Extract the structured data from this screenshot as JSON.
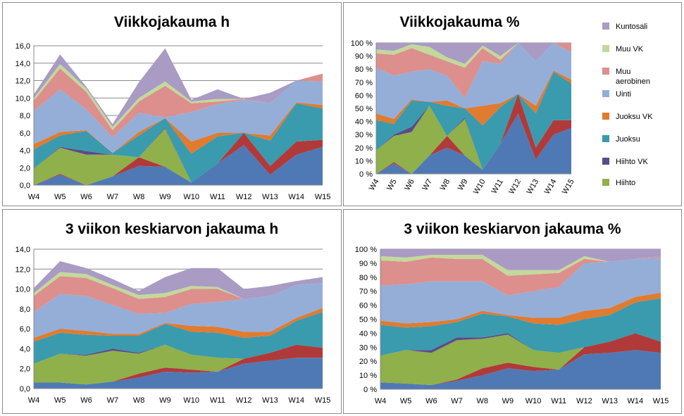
{
  "series_colors": {
    "Hiihto": "#8fb04a",
    "Hiihto VK": "#5b4a8b",
    "Juoksu": "#3a9aae",
    "Juoksu VK": "#e07b30",
    "Uinti": "#95aed8",
    "Muu aerobinen": "#dc8f8d",
    "Muu VK": "#c3d99a",
    "Kuntosali": "#a99bc4",
    "Hiihto-base": "#4f79b5",
    "Hiihto-red": "#b03a3a"
  },
  "chart_data": [
    {
      "id": "weekly_h",
      "type": "area",
      "stacked": true,
      "title": "Viikkojakauma h",
      "categories": [
        "W4",
        "W5",
        "W6",
        "W7",
        "W8",
        "W9",
        "W10",
        "W11",
        "W12",
        "W13",
        "W14",
        "W15"
      ],
      "ylim": [
        0,
        16
      ],
      "yticks": [
        "0,0",
        "2,0",
        "4,0",
        "6,0",
        "8,0",
        "10,0",
        "12,0",
        "14,0",
        "16,0"
      ],
      "grid": true,
      "series": [
        {
          "values": [
            0.0,
            1.2,
            0.0,
            1.0,
            2.2,
            2.1,
            0.3,
            2.5,
            4.6,
            1.2,
            3.5,
            4.4
          ],
          "color": "#4f79b5"
        },
        {
          "values": [
            0.0,
            0.1,
            0.0,
            0.0,
            1.0,
            0.0,
            0.0,
            0.0,
            1.4,
            1.0,
            1.5,
            0.8
          ],
          "color": "#b03a3a"
        },
        {
          "name": "Hiihto",
          "values": [
            1.9,
            3.0,
            3.5,
            2.5,
            0.0,
            4.4,
            0.0,
            0.0,
            0.0,
            0.0,
            0.0,
            0.0
          ],
          "color": "#8fb04a"
        },
        {
          "name": "Hiihto VK",
          "values": [
            0.0,
            0.1,
            0.4,
            0.0,
            0.0,
            0.1,
            0.0,
            0.0,
            0.0,
            0.0,
            0.0,
            0.0
          ],
          "color": "#5b4a8b"
        },
        {
          "name": "Juoksu",
          "values": [
            2.2,
            1.3,
            2.3,
            0.2,
            2.5,
            1.1,
            3.3,
            3.1,
            0.0,
            2.9,
            4.4,
            3.6
          ],
          "color": "#3a9aae"
        },
        {
          "name": "Juoksu VK",
          "values": [
            0.6,
            0.4,
            0.1,
            0.0,
            0.4,
            0.0,
            1.4,
            0.4,
            0.0,
            0.6,
            0.1,
            0.4
          ],
          "color": "#e07b30"
        },
        {
          "name": "Uinti",
          "values": [
            3.8,
            4.9,
            2.4,
            1.8,
            2.2,
            0.1,
            3.4,
            3.3,
            3.8,
            3.7,
            2.5,
            2.7
          ],
          "color": "#95aed8"
        },
        {
          "name": "Muu aerobinen",
          "values": [
            1.2,
            2.4,
            2.0,
            0.8,
            1.3,
            3.6,
            1.0,
            0.3,
            0.1,
            0.0,
            0.0,
            0.9
          ],
          "color": "#dc8f8d"
        },
        {
          "name": "Muu VK",
          "values": [
            0.3,
            0.5,
            0.4,
            0.4,
            0.4,
            0.5,
            0.2,
            0.3,
            0.0,
            0.0,
            0.0,
            0.0
          ],
          "color": "#c3d99a"
        },
        {
          "name": "Kuntosali",
          "values": [
            0.4,
            1.1,
            0.2,
            0.3,
            1.8,
            3.8,
            0.2,
            1.1,
            0.0,
            1.2,
            0.0,
            0.0
          ],
          "color": "#a99bc4"
        }
      ]
    },
    {
      "id": "weekly_pct",
      "type": "area",
      "stacked": true,
      "title": "Viikkojakauma %",
      "categories": [
        "W4",
        "W5",
        "W6",
        "W7",
        "W8",
        "W9",
        "W10",
        "W11",
        "W12",
        "W13",
        "W14",
        "W15"
      ],
      "ylim": [
        0,
        100
      ],
      "yticks": [
        "0 %",
        "10 %",
        "20 %",
        "30 %",
        "40 %",
        "50 %",
        "60 %",
        "70 %",
        "80 %",
        "90 %",
        "100 %"
      ],
      "grid": true,
      "rotated_xlabels": true,
      "series": [
        {
          "values": [
            0,
            8,
            0,
            14,
            20,
            14,
            3,
            23,
            46,
            11,
            30,
            35
          ],
          "color": "#4f79b5"
        },
        {
          "values": [
            0,
            1,
            0,
            0,
            9,
            0,
            0,
            0,
            15,
            9,
            11,
            6
          ],
          "color": "#b03a3a"
        },
        {
          "name": "Hiihto",
          "values": [
            18,
            20,
            32,
            38,
            0,
            28,
            0,
            0,
            0,
            0,
            0,
            0
          ],
          "color": "#8fb04a"
        },
        {
          "name": "Hiihto VK",
          "values": [
            0,
            1,
            4,
            0,
            0,
            1,
            0,
            0,
            0,
            0,
            0,
            0
          ],
          "color": "#5b4a8b"
        },
        {
          "name": "Juoksu",
          "values": [
            23,
            8,
            20,
            3,
            23,
            7,
            34,
            28,
            0,
            26,
            37,
            28
          ],
          "color": "#3a9aae"
        },
        {
          "name": "Juoksu VK",
          "values": [
            5,
            4,
            1,
            0,
            4,
            0,
            15,
            3,
            0,
            6,
            1,
            3
          ],
          "color": "#e07b30"
        },
        {
          "name": "Uinti",
          "values": [
            35,
            33,
            21,
            25,
            19,
            8,
            34,
            30,
            39,
            34,
            21,
            21
          ],
          "color": "#95aed8"
        },
        {
          "name": "Muu aerobinen",
          "values": [
            11,
            16,
            18,
            11,
            11,
            23,
            10,
            3,
            0,
            0,
            0,
            7
          ],
          "color": "#dc8f8d"
        },
        {
          "name": "Muu VK",
          "values": [
            3,
            3,
            3,
            6,
            3,
            3,
            2,
            3,
            0,
            0,
            0,
            0
          ],
          "color": "#c3d99a"
        },
        {
          "name": "Kuntosali",
          "values": [
            5,
            6,
            1,
            3,
            11,
            16,
            2,
            10,
            0,
            14,
            0,
            0
          ],
          "color": "#a99bc4"
        }
      ]
    },
    {
      "id": "avg3_h",
      "type": "area",
      "stacked": true,
      "title": "3 viikon keskiarvon jakauma h",
      "categories": [
        "W4",
        "W5",
        "W6",
        "W7",
        "W8",
        "W9",
        "W10",
        "W11",
        "W12",
        "W13",
        "W14",
        "W15"
      ],
      "ylim": [
        0,
        14
      ],
      "yticks": [
        "0,0",
        "2,0",
        "4,0",
        "6,0",
        "8,0",
        "10,0",
        "12,0",
        "14,0"
      ],
      "grid": true,
      "series": [
        {
          "values": [
            0.6,
            0.6,
            0.4,
            0.7,
            1.1,
            1.7,
            1.6,
            1.7,
            2.5,
            2.8,
            3.1,
            3.1
          ],
          "color": "#4f79b5"
        },
        {
          "values": [
            0.0,
            0.0,
            0.0,
            0.0,
            0.4,
            0.4,
            0.3,
            0.0,
            0.5,
            0.8,
            1.3,
            1.0
          ],
          "color": "#b03a3a"
        },
        {
          "name": "Hiihto",
          "values": [
            1.9,
            2.9,
            2.9,
            3.1,
            2.0,
            2.3,
            1.5,
            1.4,
            0.0,
            0.0,
            0.0,
            0.0
          ],
          "color": "#8fb04a"
        },
        {
          "name": "Hiihto VK",
          "values": [
            0.0,
            0.0,
            0.1,
            0.2,
            0.1,
            0.0,
            0.0,
            0.0,
            0.0,
            0.0,
            0.0,
            0.0
          ],
          "color": "#5b4a8b"
        },
        {
          "name": "Juoksu",
          "values": [
            2.2,
            2.1,
            2.0,
            1.3,
            1.7,
            2.1,
            2.3,
            2.5,
            2.1,
            1.7,
            2.4,
            3.6
          ],
          "color": "#3a9aae"
        },
        {
          "name": "Juoksu VK",
          "values": [
            0.4,
            0.4,
            0.4,
            0.2,
            0.2,
            0.1,
            0.6,
            0.6,
            0.6,
            0.4,
            0.3,
            0.4
          ],
          "color": "#e07b30"
        },
        {
          "name": "Uinti",
          "values": [
            2.6,
            3.5,
            3.5,
            2.9,
            2.0,
            1.0,
            2.2,
            2.5,
            3.3,
            3.6,
            3.3,
            2.5
          ],
          "color": "#95aed8"
        },
        {
          "name": "Muu aerobinen",
          "values": [
            1.6,
            1.8,
            1.8,
            1.7,
            1.5,
            1.6,
            1.5,
            1.3,
            0.0,
            0.0,
            0.0,
            0.0
          ],
          "color": "#dc8f8d"
        },
        {
          "name": "Muu VK",
          "values": [
            0.3,
            0.4,
            0.4,
            0.3,
            0.4,
            0.4,
            0.3,
            0.2,
            0.0,
            0.0,
            0.0,
            0.0
          ],
          "color": "#c3d99a"
        },
        {
          "name": "Kuntosali",
          "values": [
            0.5,
            1.1,
            0.6,
            0.6,
            0.4,
            1.6,
            1.8,
            1.9,
            1.0,
            1.0,
            0.4,
            0.6
          ],
          "color": "#a99bc4"
        }
      ]
    },
    {
      "id": "avg3_pct",
      "type": "area",
      "stacked": true,
      "title": "3 viikon keskiarvon jakauma %",
      "categories": [
        "W4",
        "W5",
        "W6",
        "W7",
        "W8",
        "W9",
        "W10",
        "W11",
        "W12",
        "W13",
        "W14",
        "W15"
      ],
      "ylim": [
        0,
        100
      ],
      "yticks": [
        "0 %",
        "10 %",
        "20 %",
        "30 %",
        "40 %",
        "50 %",
        "60 %",
        "70 %",
        "80 %",
        "90 %",
        "100 %"
      ],
      "grid": true,
      "series": [
        {
          "values": [
            5,
            4,
            3,
            6,
            10,
            15,
            13,
            14,
            25,
            26,
            28,
            26
          ],
          "color": "#4f79b5"
        },
        {
          "values": [
            0,
            0,
            0,
            1,
            5,
            4,
            3,
            0,
            5,
            8,
            12,
            8
          ],
          "color": "#b03a3a"
        },
        {
          "name": "Hiihto",
          "values": [
            19,
            24,
            23,
            28,
            21,
            20,
            12,
            12,
            0,
            0,
            0,
            0
          ],
          "color": "#8fb04a"
        },
        {
          "name": "Hiihto VK",
          "values": [
            0,
            0,
            2,
            2,
            1,
            1,
            0,
            0,
            0,
            0,
            0,
            0
          ],
          "color": "#5b4a8b"
        },
        {
          "name": "Juoksu",
          "values": [
            22,
            16,
            17,
            11,
            17,
            12,
            19,
            20,
            20,
            19,
            22,
            31
          ],
          "color": "#3a9aae"
        },
        {
          "name": "Juoksu VK",
          "values": [
            3,
            3,
            3,
            2,
            2,
            1,
            4,
            5,
            6,
            5,
            4,
            4
          ],
          "color": "#e07b30"
        },
        {
          "name": "Uinti",
          "values": [
            25,
            28,
            29,
            27,
            21,
            14,
            19,
            22,
            34,
            33,
            27,
            25
          ],
          "color": "#95aed8"
        },
        {
          "name": "Muu aerobinen",
          "values": [
            18,
            16,
            17,
            16,
            16,
            14,
            12,
            10,
            3,
            0,
            0,
            1
          ],
          "color": "#dc8f8d"
        },
        {
          "name": "Muu VK",
          "values": [
            3,
            3,
            2,
            3,
            3,
            4,
            3,
            2,
            2,
            0,
            0,
            0
          ],
          "color": "#c3d99a"
        },
        {
          "name": "Kuntosali",
          "values": [
            5,
            6,
            4,
            4,
            4,
            15,
            15,
            15,
            5,
            9,
            7,
            5
          ],
          "color": "#a99bc4"
        }
      ]
    }
  ],
  "legend": {
    "placement": "right",
    "items": [
      {
        "label": "Kuntosali",
        "color": "#a99bc4"
      },
      {
        "label": "Muu VK",
        "color": "#c3d99a"
      },
      {
        "label": "Muu",
        "label2": "aerobinen",
        "color": "#dc8f8d"
      },
      {
        "label": "Uinti",
        "color": "#95aed8"
      },
      {
        "label": "Juoksu VK",
        "color": "#e07b30"
      },
      {
        "label": "Juoksu",
        "color": "#3a9aae"
      },
      {
        "label": "Hiihto VK",
        "color": "#5b4a8b"
      },
      {
        "label": "Hiihto",
        "color": "#8fb04a"
      }
    ]
  }
}
